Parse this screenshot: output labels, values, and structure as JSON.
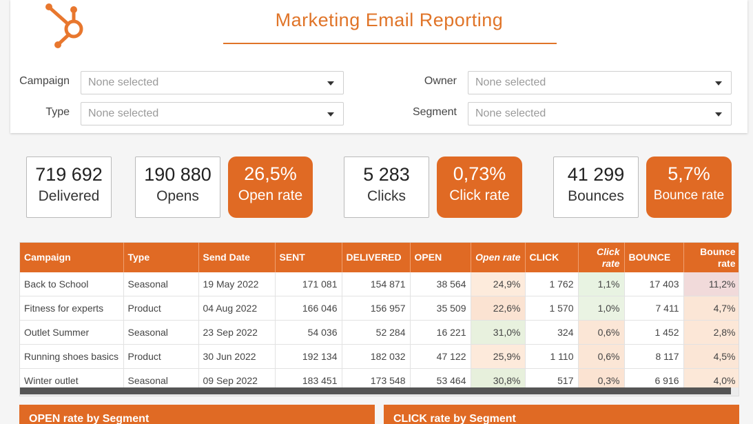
{
  "page": {
    "title": "Marketing Email Reporting",
    "accent_color": "#e06a24"
  },
  "filters": {
    "campaign_label": "Campaign",
    "campaign_value": "None selected",
    "type_label": "Type",
    "type_value": "None selected",
    "owner_label": "Owner",
    "owner_value": "None selected",
    "segment_label": "Segment",
    "segment_value": "None selected"
  },
  "kpis": {
    "delivered": {
      "value": "719 692",
      "label": "Delivered"
    },
    "opens": {
      "value": "190 880",
      "label": "Opens"
    },
    "open_rate": {
      "value": "26,5%",
      "label": "Open rate"
    },
    "clicks": {
      "value": "5 283",
      "label": "Clicks"
    },
    "click_rate": {
      "value": "0,73%",
      "label": "Click rate"
    },
    "bounces": {
      "value": "41 299",
      "label": "Bounces"
    },
    "bounce_rate": {
      "value": "5,7%",
      "label": "Bounce rate"
    }
  },
  "table": {
    "headers": {
      "campaign": "Campaign",
      "type": "Type",
      "send_date": "Send Date",
      "sent": "SENT",
      "delivered": "DELIVERED",
      "open": "OPEN",
      "open_rate": "Open rate",
      "click": "CLICK",
      "click_rate_1": "Click",
      "click_rate_2": "rate",
      "bounce": "BOUNCE",
      "bounce_rate_1": "Bounce",
      "bounce_rate_2": "rate"
    },
    "rows": [
      {
        "campaign": "Back to School",
        "type": "Seasonal",
        "send_date": "19 May 2022",
        "sent": "171 081",
        "delivered": "154 871",
        "open": "38 564",
        "open_rate": "24,9%",
        "click": "1 762",
        "click_rate": "1,1%",
        "bounce": "17 403",
        "bounce_rate": "11,2%",
        "open_rate_bg": "#fdebdc",
        "click_rate_bg": "#e8f3e2",
        "bounce_rate_bg": "#f1dada"
      },
      {
        "campaign": "Fitness for experts",
        "type": "Product",
        "send_date": "04 Aug 2022",
        "sent": "166 046",
        "delivered": "156 957",
        "open": "35 509",
        "open_rate": "22,6%",
        "click": "1 570",
        "click_rate": "1,0%",
        "bounce": "7 411",
        "bounce_rate": "4,7%",
        "open_rate_bg": "#fbe3d2",
        "click_rate_bg": "#eaf3e3",
        "bounce_rate_bg": "#fbe6d6"
      },
      {
        "campaign": "Outlet Summer",
        "type": "Seasonal",
        "send_date": "23 Sep 2022",
        "sent": "54 036",
        "delivered": "52 284",
        "open": "16 221",
        "open_rate": "31,0%",
        "click": "324",
        "click_rate": "0,6%",
        "bounce": "1 452",
        "bounce_rate": "2,8%",
        "open_rate_bg": "#e8f1de",
        "click_rate_bg": "#fbe6d6",
        "bounce_rate_bg": "#fce7d7"
      },
      {
        "campaign": "Running shoes basics",
        "type": "Product",
        "send_date": "30 Jun 2022",
        "sent": "192 134",
        "delivered": "182 032",
        "open": "47 122",
        "open_rate": "25,9%",
        "click": "1 110",
        "click_rate": "0,6%",
        "bounce": "8 117",
        "bounce_rate": "4,5%",
        "open_rate_bg": "#fdeadb",
        "click_rate_bg": "#fbe6d6",
        "bounce_rate_bg": "#fbe6d6"
      },
      {
        "campaign": "Winter outlet",
        "type": "Seasonal",
        "send_date": "09 Sep 2022",
        "sent": "183 451",
        "delivered": "173 548",
        "open": "53 464",
        "open_rate": "30,8%",
        "click": "517",
        "click_rate": "0,3%",
        "bounce": "6 916",
        "bounce_rate": "4,0%",
        "open_rate_bg": "#e7f0dc",
        "click_rate_bg": "#fbe3d2",
        "bounce_rate_bg": "#fce8d8"
      }
    ]
  },
  "panels": {
    "open_rate_by_segment": "OPEN rate by Segment",
    "click_rate_by_segment": "CLICK rate by Segment"
  }
}
